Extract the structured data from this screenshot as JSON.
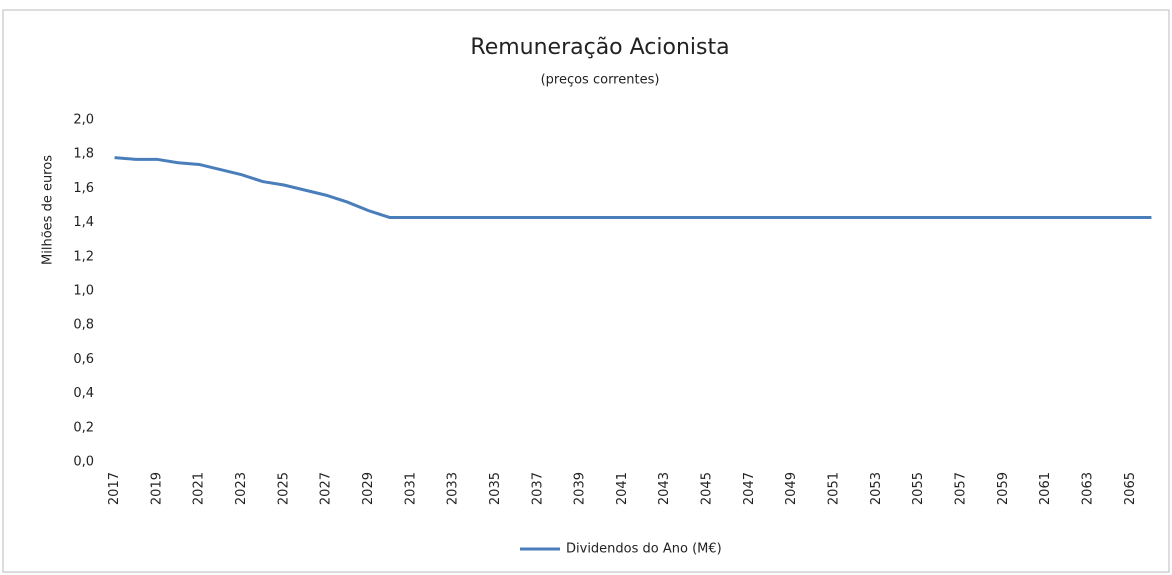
{
  "chart_data": {
    "type": "line",
    "title": "Remuneração Acionista",
    "subtitle": "(preços correntes)",
    "y_label": "Milhões de euros",
    "x": [
      2017,
      2018,
      2019,
      2020,
      2021,
      2022,
      2023,
      2024,
      2025,
      2026,
      2027,
      2028,
      2029,
      2030,
      2031,
      2032,
      2033,
      2034,
      2035,
      2036,
      2037,
      2038,
      2039,
      2040,
      2041,
      2042,
      2043,
      2044,
      2045,
      2046,
      2047,
      2048,
      2049,
      2050,
      2051,
      2052,
      2053,
      2054,
      2055,
      2056,
      2057,
      2058,
      2059,
      2060,
      2061,
      2062,
      2063,
      2064,
      2065,
      2066
    ],
    "series": [
      {
        "name": "Dividendos do Ano (M€)",
        "color": "#4a7ebb",
        "values": [
          1.78,
          1.77,
          1.77,
          1.75,
          1.74,
          1.71,
          1.68,
          1.64,
          1.62,
          1.59,
          1.56,
          1.52,
          1.47,
          1.43,
          1.43,
          1.43,
          1.43,
          1.43,
          1.43,
          1.43,
          1.43,
          1.43,
          1.43,
          1.43,
          1.43,
          1.43,
          1.43,
          1.43,
          1.43,
          1.43,
          1.43,
          1.43,
          1.43,
          1.43,
          1.43,
          1.43,
          1.43,
          1.43,
          1.43,
          1.43,
          1.43,
          1.43,
          1.43,
          1.43,
          1.43,
          1.43,
          1.43,
          1.43,
          1.43,
          1.43
        ]
      }
    ],
    "xlim": [
      2016.5,
      2066.5
    ],
    "xticks": [
      2017,
      2019,
      2021,
      2023,
      2025,
      2027,
      2029,
      2031,
      2033,
      2035,
      2037,
      2039,
      2041,
      2043,
      2045,
      2047,
      2049,
      2051,
      2053,
      2055,
      2057,
      2059,
      2061,
      2063,
      2065
    ],
    "ylim": [
      0,
      2
    ],
    "yticks": [
      {
        "value": 0,
        "label": "0,0"
      },
      {
        "value": 0.2,
        "label": "0,2"
      },
      {
        "value": 0.4,
        "label": "0,4"
      },
      {
        "value": 0.6,
        "label": "0,6"
      },
      {
        "value": 0.8,
        "label": "0,8"
      },
      {
        "value": 1,
        "label": "1,0"
      },
      {
        "value": 1.2,
        "label": "1,2"
      },
      {
        "value": 1.4,
        "label": "1,4"
      },
      {
        "value": 1.6,
        "label": "1,6"
      },
      {
        "value": 1.8,
        "label": "1,8"
      },
      {
        "value": 2,
        "label": "2,0"
      }
    ],
    "grid": false,
    "legend": "bottom"
  }
}
